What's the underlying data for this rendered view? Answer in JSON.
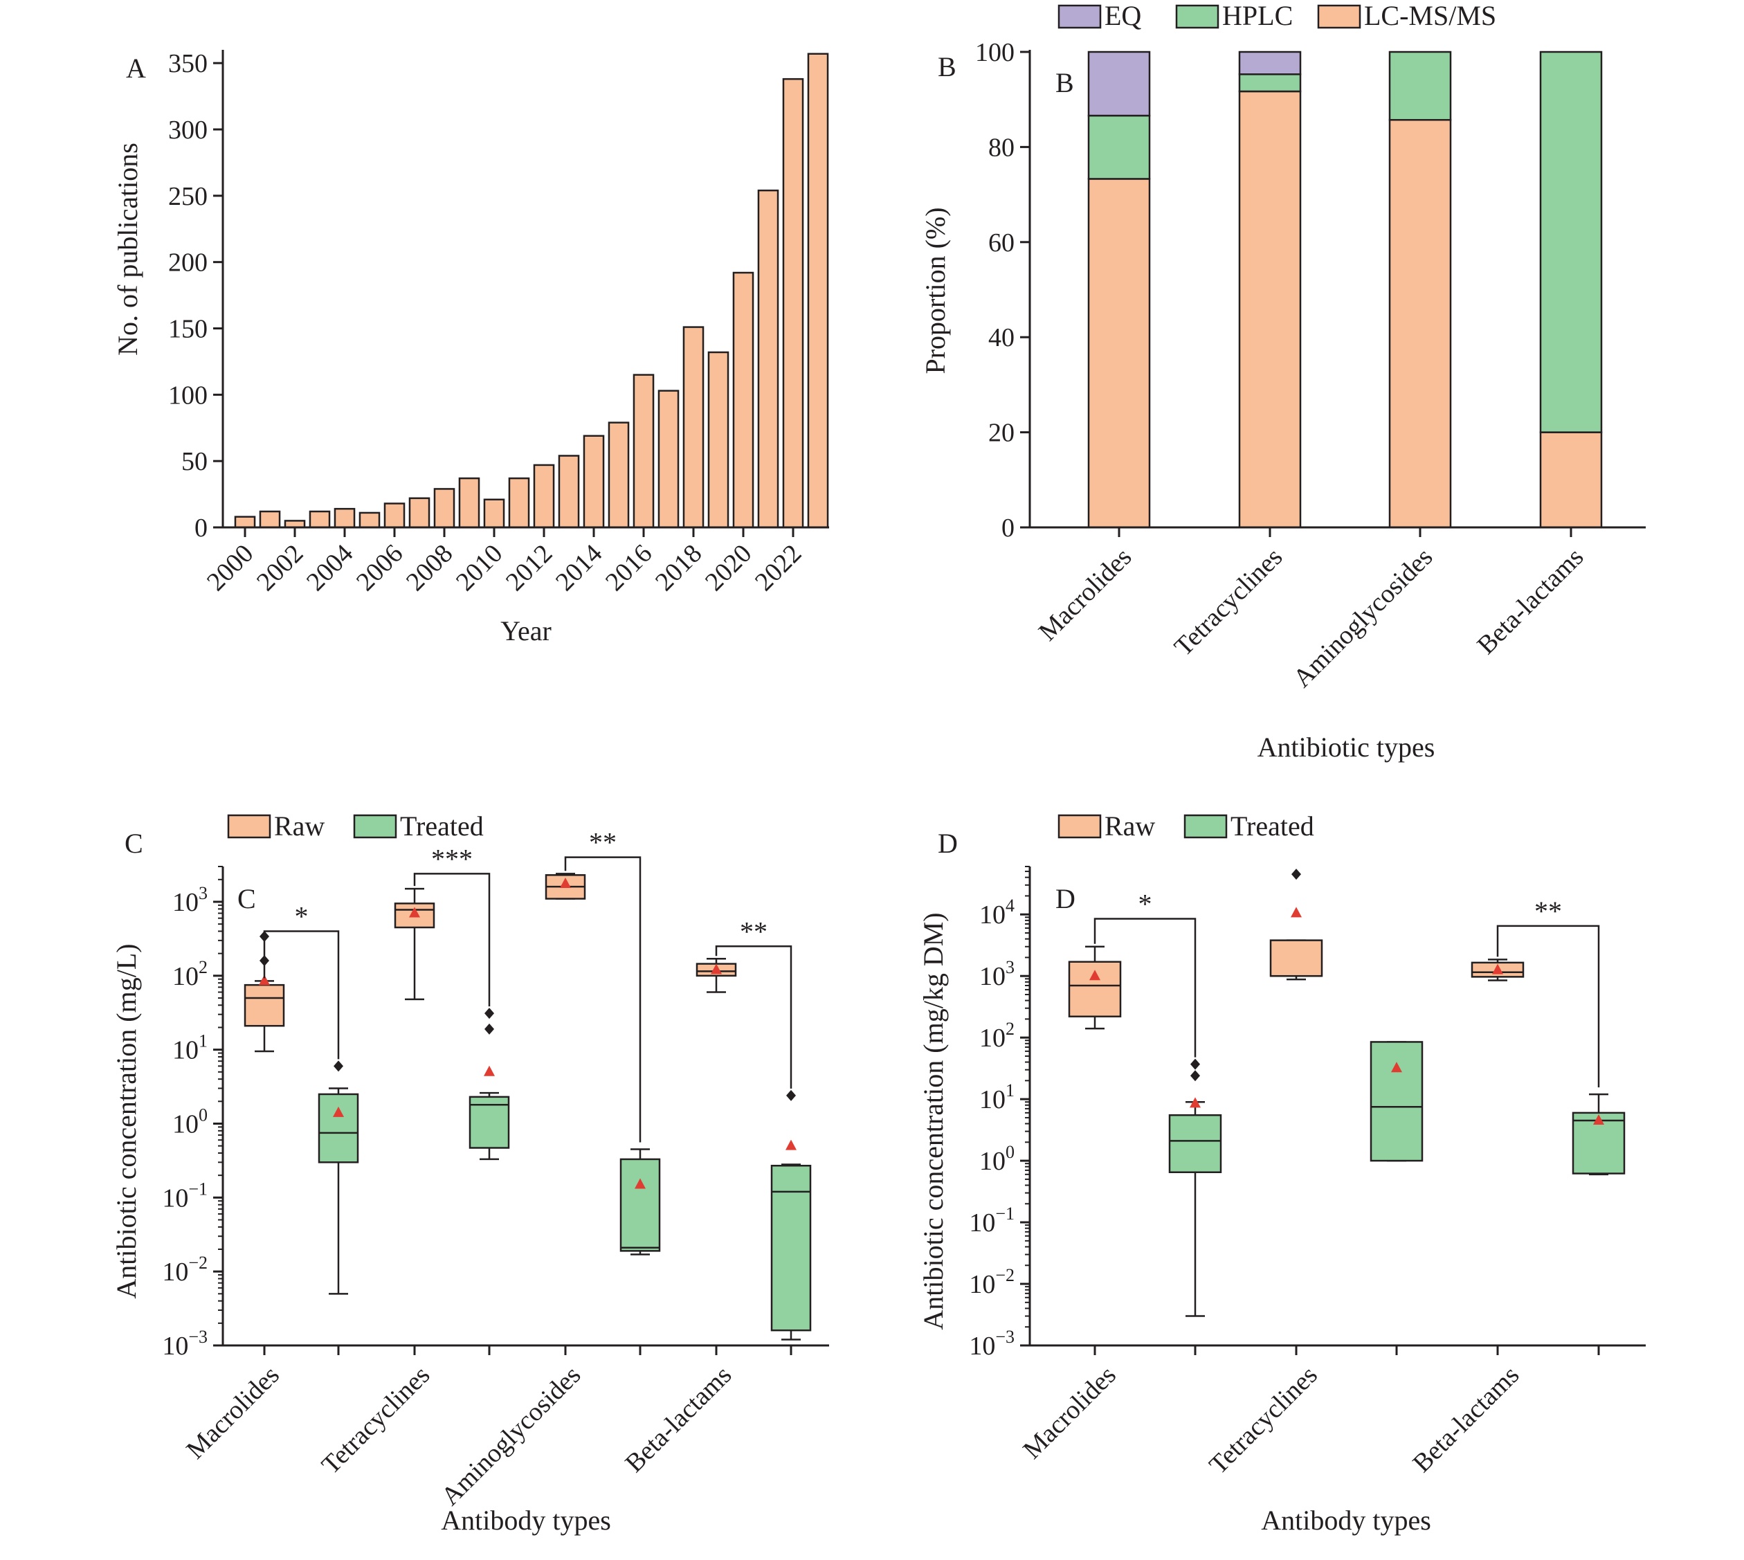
{
  "colors": {
    "orange": "#f9bf98",
    "green": "#91d2a0",
    "purple": "#b4aad2",
    "stroke": "#231f20",
    "mean": "#e03c31",
    "outlier": "#231f20"
  },
  "panels": {
    "A": {
      "letter": "A"
    },
    "B": {
      "letter": "B",
      "inner_letter": "B"
    },
    "C": {
      "letter": "C",
      "inner_letter": "C"
    },
    "D": {
      "letter": "D",
      "inner_letter": "D"
    }
  },
  "chart_data": [
    {
      "id": "A",
      "type": "bar",
      "xlabel": "Year",
      "ylabel": "No.  of publications",
      "ylim": [
        0,
        360
      ],
      "yticks": [
        0,
        50,
        100,
        150,
        200,
        250,
        300,
        350
      ],
      "categories": [
        "2000",
        "2001",
        "2002",
        "2003",
        "2004",
        "2005",
        "2006",
        "2007",
        "2008",
        "2009",
        "2010",
        "2011",
        "2012",
        "2013",
        "2014",
        "2015",
        "2016",
        "2017",
        "2018",
        "2019",
        "2020",
        "2021",
        "2022",
        "2023"
      ],
      "tick_labels": [
        "2000",
        "2002",
        "2004",
        "2006",
        "2008",
        "2010",
        "2012",
        "2014",
        "2016",
        "2018",
        "2020",
        "2022"
      ],
      "values": [
        8,
        12,
        5,
        12,
        14,
        11,
        18,
        22,
        29,
        37,
        21,
        37,
        47,
        54,
        69,
        79,
        115,
        103,
        151,
        132,
        192,
        254,
        338,
        357
      ]
    },
    {
      "id": "B",
      "type": "bar",
      "stacked": true,
      "xlabel": "Antibiotic types",
      "ylabel": "Proportion (%)",
      "ylim": [
        0,
        100
      ],
      "yticks": [
        0,
        20,
        40,
        60,
        80,
        100
      ],
      "legend_position": "top",
      "categories": [
        "Macrolides",
        "Tetracyclines",
        "Aminoglycosides",
        "Beta-lactams"
      ],
      "series": [
        {
          "name": "LC-MS/MS",
          "values": [
            73.3,
            91.7,
            85.7,
            20.0
          ]
        },
        {
          "name": "HPLC",
          "values": [
            13.3,
            3.6,
            14.3,
            80.0
          ]
        },
        {
          "name": "EQ",
          "values": [
            13.4,
            4.7,
            0,
            0
          ]
        }
      ],
      "legend_order": [
        "EQ",
        "HPLC",
        "LC-MS/MS"
      ]
    },
    {
      "id": "C",
      "type": "box",
      "yscale": "log",
      "xlabel": "Antibody types",
      "ylabel": "Antibiotic concentration (mg/L)",
      "ylim": [
        0.001,
        3000
      ],
      "ytick_exponents": [
        -3,
        -2,
        -1,
        0,
        1,
        2,
        3
      ],
      "legend_position": "top",
      "legend": [
        "Raw",
        "Treated"
      ],
      "categories": [
        "Macrolides",
        "Tetracyclines",
        "Aminoglycosides",
        "Beta-lactams"
      ],
      "boxes": [
        {
          "category": "Macrolides",
          "group": "Raw",
          "whislo": 9.5,
          "q1": 21,
          "med": 50,
          "q3": 75,
          "whishi": 85,
          "mean": 85,
          "fliers": [
            160,
            340
          ]
        },
        {
          "category": "Macrolides",
          "group": "Treated",
          "whislo": 0.005,
          "q1": 0.3,
          "med": 0.75,
          "q3": 2.5,
          "whishi": 3.0,
          "mean": 1.4,
          "fliers": [
            6.0
          ]
        },
        {
          "category": "Tetracyclines",
          "group": "Raw",
          "whislo": 48,
          "q1": 450,
          "med": 780,
          "q3": 950,
          "whishi": 1500,
          "mean": 700,
          "fliers": []
        },
        {
          "category": "Tetracyclines",
          "group": "Treated",
          "whislo": 0.33,
          "q1": 0.47,
          "med": 1.8,
          "q3": 2.3,
          "whishi": 2.6,
          "mean": 5.0,
          "fliers": [
            19,
            31
          ]
        },
        {
          "category": "Aminoglycosides",
          "group": "Raw",
          "whislo": 1100,
          "q1": 1100,
          "med": 1600,
          "q3": 2300,
          "whishi": 2400,
          "mean": 1750,
          "fliers": []
        },
        {
          "category": "Aminoglycosides",
          "group": "Treated",
          "whislo": 0.017,
          "q1": 0.019,
          "med": 0.021,
          "q3": 0.33,
          "whishi": 0.45,
          "mean": 0.15,
          "fliers": []
        },
        {
          "category": "Beta-lactams",
          "group": "Raw",
          "whislo": 60,
          "q1": 100,
          "med": 115,
          "q3": 145,
          "whishi": 170,
          "mean": 120,
          "fliers": []
        },
        {
          "category": "Beta-lactams",
          "group": "Treated",
          "whislo": 0.0012,
          "q1": 0.0016,
          "med": 0.12,
          "q3": 0.27,
          "whishi": 0.28,
          "mean": 0.5,
          "fliers": [
            2.4
          ]
        }
      ],
      "significance": [
        {
          "category": "Macrolides",
          "label": "*",
          "level": 400
        },
        {
          "category": "Tetracyclines",
          "label": "***",
          "level": 2400
        },
        {
          "category": "Aminoglycosides",
          "label": "**",
          "level": 4000
        },
        {
          "category": "Beta-lactams",
          "label": "**",
          "level": 250
        }
      ]
    },
    {
      "id": "D",
      "type": "box",
      "yscale": "log",
      "xlabel": "Antibody types",
      "ylabel": "Antibiotic concentration (mg/kg DM)",
      "ylim": [
        0.001,
        60000
      ],
      "ytick_exponents": [
        -3,
        -2,
        -1,
        0,
        1,
        2,
        3,
        4
      ],
      "legend_position": "top",
      "legend": [
        "Raw",
        "Treated"
      ],
      "categories": [
        "Macrolides",
        "Tetracyclines",
        "Beta-lactams"
      ],
      "boxes": [
        {
          "category": "Macrolides",
          "group": "Raw",
          "whislo": 140,
          "q1": 220,
          "med": 700,
          "q3": 1700,
          "whishi": 3000,
          "mean": 1000,
          "fliers": []
        },
        {
          "category": "Macrolides",
          "group": "Treated",
          "whislo": 0.003,
          "q1": 0.65,
          "med": 2.1,
          "q3": 5.5,
          "whishi": 9.0,
          "mean": 8.5,
          "fliers": [
            24,
            37
          ]
        },
        {
          "category": "Tetracyclines",
          "group": "Raw",
          "whislo": 880,
          "q1": 1000,
          "med": 1000,
          "q3": 3800,
          "whishi": 3800,
          "mean": 10500,
          "fliers": [
            45000
          ]
        },
        {
          "category": "Tetracyclines",
          "group": "Treated",
          "whislo": 1.0,
          "q1": 1.0,
          "med": 7.5,
          "q3": 85,
          "whishi": 85,
          "mean": 32,
          "fliers": []
        },
        {
          "category": "Beta-lactams",
          "group": "Raw",
          "whislo": 850,
          "q1": 970,
          "med": 1150,
          "q3": 1650,
          "whishi": 1850,
          "mean": 1250,
          "fliers": []
        },
        {
          "category": "Beta-lactams",
          "group": "Treated",
          "whislo": 0.6,
          "q1": 0.62,
          "med": 4.5,
          "q3": 6.0,
          "whishi": 12,
          "mean": 4.5,
          "fliers": []
        }
      ],
      "significance": [
        {
          "category": "Macrolides",
          "label": "*",
          "level": 8500
        },
        {
          "category": "Beta-lactams",
          "label": "**",
          "level": 6500
        }
      ]
    }
  ]
}
